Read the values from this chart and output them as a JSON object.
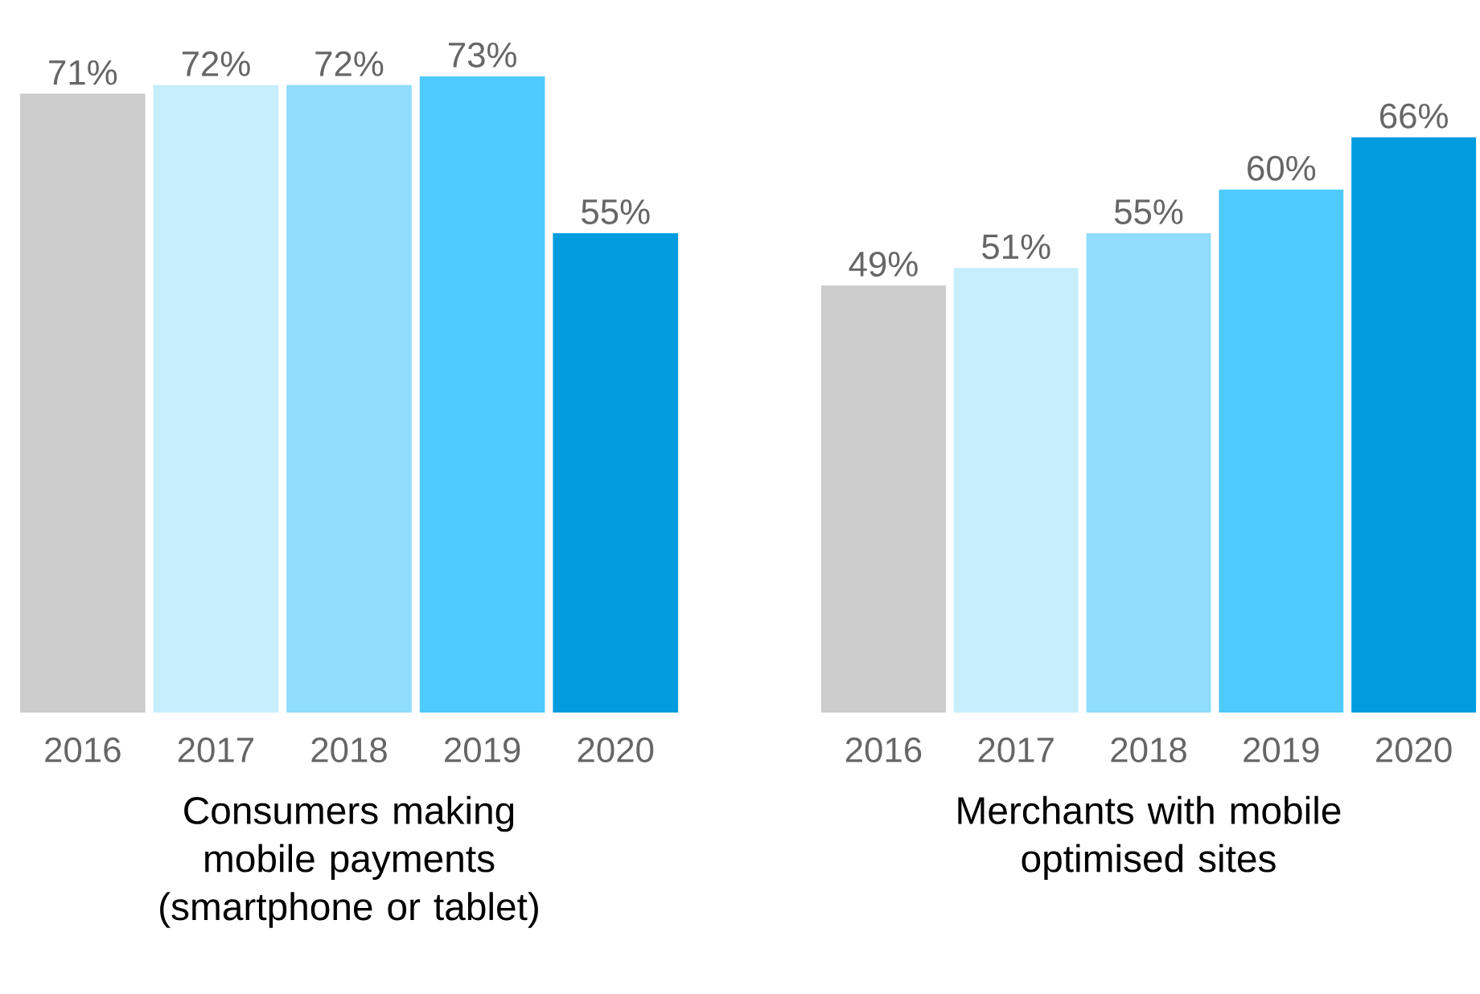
{
  "chart_data": [
    {
      "type": "bar",
      "xlabel": "Consumers making mobile payments (smartphone or tablet)",
      "categories": [
        "2016",
        "2017",
        "2018",
        "2019",
        "2020"
      ],
      "values": [
        71,
        72,
        72,
        73,
        55
      ],
      "value_labels": [
        "71%",
        "72%",
        "72%",
        "73%",
        "55%"
      ],
      "colors": [
        "#cccccc",
        "#c6eefc",
        "#8fdcfd",
        "#4fcafd",
        "#009cde"
      ]
    },
    {
      "type": "bar",
      "xlabel": "Merchants with mobile optimised sites",
      "categories": [
        "2016",
        "2017",
        "2018",
        "2019",
        "2020"
      ],
      "values": [
        49,
        51,
        55,
        60,
        66
      ],
      "value_labels": [
        "49%",
        "51%",
        "55%",
        "60%",
        "66%"
      ],
      "colors": [
        "#cccccc",
        "#c6eefc",
        "#8fdcfd",
        "#4fcafd",
        "#009cde"
      ]
    }
  ]
}
